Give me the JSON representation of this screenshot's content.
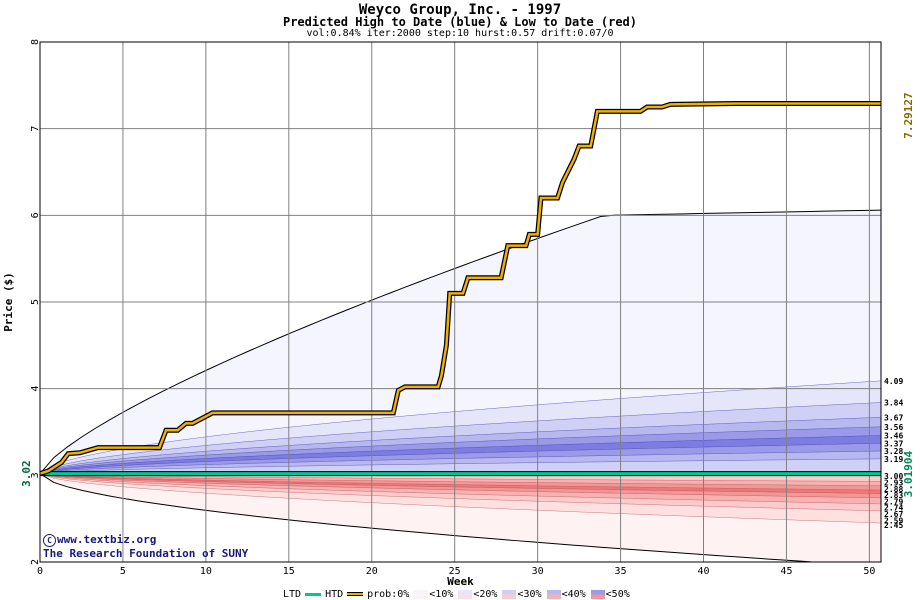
{
  "chart_data": {
    "type": "area",
    "title": "Weyco Group, Inc. - 1997",
    "subtitle": "Predicted High to Date (blue) &  Low to Date (red)",
    "params": "vol:0.84% iter:2000 step:10 hurst:0.57 drift:0.07/0",
    "xlabel": "Week",
    "ylabel": "Price ($)",
    "xlim": [
      0,
      50.7
    ],
    "ylim": [
      2,
      8
    ],
    "x_ticks": [
      0,
      5,
      10,
      15,
      20,
      25,
      30,
      35,
      40,
      45,
      50
    ],
    "y_ticks": [
      2,
      3,
      4,
      5,
      6,
      7,
      8
    ],
    "start_label": "3.02",
    "actual_high_label": "7.29127",
    "actual_low_label": "3.01904",
    "high_band_labels": [
      "4.09",
      "3.84",
      "3.67",
      "3.56",
      "3.46",
      "3.37",
      "3.28",
      "3.19"
    ],
    "low_band_labels": [
      "3.00",
      "2.93",
      "2.88",
      "2.83",
      "2.79",
      "2.74",
      "2.67",
      "2.59",
      "2.45"
    ],
    "high_quantiles": [
      {
        "prob": "0%",
        "end": 6.06
      },
      {
        "prob": "10%",
        "end": 4.09
      },
      {
        "prob": "20%",
        "end": 3.84
      },
      {
        "prob": "30%",
        "end": 3.67
      },
      {
        "prob": "40%",
        "end": 3.56
      },
      {
        "prob": "50%",
        "end": 3.46
      },
      {
        "prob": "40%",
        "end": 3.37
      },
      {
        "prob": "30%",
        "end": 3.28
      },
      {
        "prob": "20%",
        "end": 3.19
      }
    ],
    "low_quantiles": [
      {
        "prob": "20%",
        "end": 2.93
      },
      {
        "prob": "30%",
        "end": 2.88
      },
      {
        "prob": "40%",
        "end": 2.83
      },
      {
        "prob": "50%",
        "end": 2.79
      },
      {
        "prob": "40%",
        "end": 2.74
      },
      {
        "prob": "30%",
        "end": 2.67
      },
      {
        "prob": "20%",
        "end": 2.59
      },
      {
        "prob": "10%",
        "end": 2.45
      },
      {
        "prob": "0%",
        "end": 1.95
      }
    ],
    "htd_series": {
      "name": "HTD",
      "x": [
        0,
        0.5,
        0.9,
        1.3,
        1.7,
        2.4,
        3.5,
        5.0,
        7.2,
        7.6,
        8.3,
        8.8,
        9.2,
        10.4,
        13.0,
        15.0,
        18.0,
        21.3,
        21.6,
        22.0,
        22.6,
        24.0,
        24.2,
        24.5,
        24.7,
        25.0,
        25.5,
        25.8,
        27.8,
        28.2,
        29.3,
        29.5,
        30.0,
        30.2,
        31.2,
        31.5,
        32.2,
        32.5,
        33.2,
        33.6,
        34.5,
        36.2,
        36.6,
        37.5,
        38.0,
        42.0,
        50.7
      ],
      "y": [
        3.02,
        3.05,
        3.1,
        3.15,
        3.25,
        3.26,
        3.32,
        3.32,
        3.32,
        3.52,
        3.52,
        3.6,
        3.6,
        3.72,
        3.72,
        3.72,
        3.72,
        3.72,
        3.98,
        4.02,
        4.02,
        4.02,
        4.15,
        4.5,
        5.1,
        5.1,
        5.1,
        5.28,
        5.28,
        5.65,
        5.65,
        5.78,
        5.78,
        6.2,
        6.2,
        6.38,
        6.65,
        6.8,
        6.8,
        7.2,
        7.2,
        7.2,
        7.25,
        7.25,
        7.28,
        7.29,
        7.29
      ]
    },
    "ltd_series": {
      "name": "LTD",
      "x": [
        0,
        0.8,
        3,
        10,
        20,
        30,
        40,
        50.7
      ],
      "y": [
        3.02,
        3.02,
        3.02,
        3.02,
        3.019,
        3.019,
        3.019,
        3.019
      ]
    },
    "legend": {
      "ltd": "LTD",
      "htd": "HTD",
      "prob": "prob:0%",
      "bins": [
        "<10%",
        "<20%",
        "<30%",
        "<40%",
        "<50%"
      ]
    },
    "credit_line1": "www.textbiz.org",
    "credit_line2": "The Research Foundation of SUNY",
    "colors": {
      "htd": "#f0b000",
      "ltd": "#00c890",
      "blue_bands": [
        "#f5f5ff",
        "#e6e6fb",
        "#d0d0f6",
        "#b8b8f0",
        "#9a9ae8",
        "#7c7ce2"
      ],
      "red_bands": [
        "#fff2f2",
        "#ffe0e0",
        "#fccaca",
        "#f8b0b0",
        "#f29696",
        "#ec7878"
      ]
    }
  }
}
